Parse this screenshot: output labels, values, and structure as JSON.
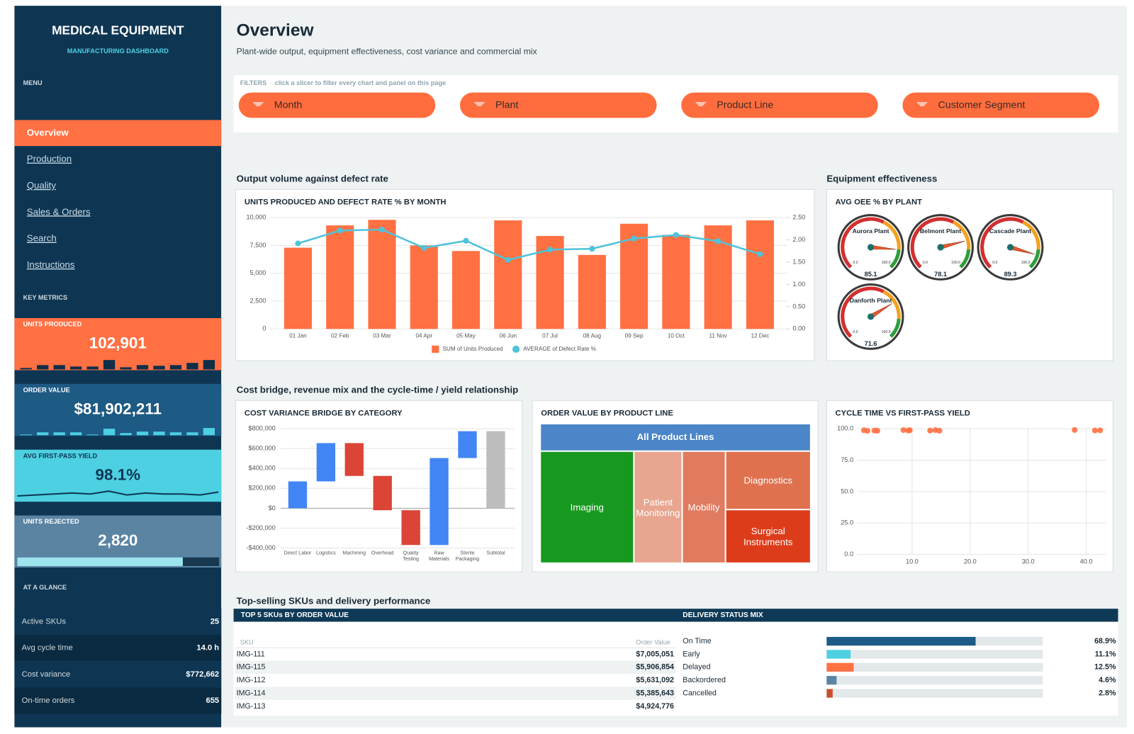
{
  "sidebar": {
    "title": "MEDICAL EQUIPMENT",
    "subtitle": "MANUFACTURING DASHBOARD",
    "menu_label": "MENU",
    "menu": [
      "Overview",
      "Production",
      "Quality",
      "Sales & Orders",
      "Search",
      "Instructions"
    ],
    "key_metrics_label": "KEY METRICS",
    "kpis": [
      {
        "label": "UNITS PRODUCED",
        "value": "102,901",
        "color": "#ff7043",
        "text_color": "#ffffff",
        "spark_type": "bar",
        "spark_color": "#0e2f47",
        "spark": [
          2,
          6,
          6,
          4,
          4,
          13,
          3,
          6,
          5,
          6,
          9,
          13
        ],
        "spark_lim": [
          0,
          14
        ]
      },
      {
        "label": "ORDER VALUE",
        "value": "$81,902,211",
        "color": "#1d5a84",
        "text_color": "#ffffff",
        "spark_type": "bar",
        "spark_color": "#4dd0e1",
        "spark": [
          1,
          4,
          4,
          4,
          1,
          9,
          3,
          5,
          5,
          4,
          4,
          10
        ],
        "spark_lim": [
          0,
          14
        ]
      },
      {
        "label": "AVG FIRST-PASS YIELD",
        "value": "98.1%",
        "color": "#4dd0e1",
        "text_color": "#0e3653",
        "spark_type": "line",
        "spark_color": "#0e3653",
        "spark": [
          97.9,
          98.0,
          98.1,
          98.2,
          98.1,
          98.4,
          98.0,
          98.2,
          98.1,
          98.1,
          98.0,
          98.3
        ],
        "spark_lim": [
          97.6,
          98.8
        ]
      },
      {
        "label": "UNITS REJECTED",
        "value": "2,820",
        "color": "#5b84a3",
        "text_color": "#ffffff",
        "spark_type": "progress",
        "spark_color": "#9de3ec",
        "spark": [
          82
        ],
        "spark_lim": [
          0,
          100
        ]
      }
    ],
    "glance_label": "AT A GLANCE",
    "glance": [
      [
        "Active SKUs",
        "25"
      ],
      [
        "Avg cycle time",
        "14.0 h"
      ],
      [
        "Cost variance",
        "$772,662"
      ],
      [
        "On-time orders",
        "655"
      ]
    ]
  },
  "header": {
    "title": "Overview",
    "subtitle": "Plant-wide output, equipment effectiveness, cost variance and commercial mix"
  },
  "filters": {
    "label": "FILTERS",
    "separator": "·",
    "hint": "click a slicer to filter every chart and panel on this page",
    "slicers": [
      "Month",
      "Plant",
      "Product Line",
      "Customer Segment"
    ]
  },
  "sections": [
    "Output volume against defect rate",
    "Equipment effectiveness",
    "Cost bridge, revenue mix and the cycle-time / yield relationship",
    "Top-selling SKUs and delivery performance"
  ],
  "chart_data": [
    {
      "type": "combo",
      "title": "UNITS PRODUCED AND DEFECT RATE % BY MONTH",
      "categories": [
        "01 Jan",
        "02 Feb",
        "03 Mar",
        "04 Apr",
        "05 May",
        "06 Jun",
        "07 Jul",
        "08 Aug",
        "09 Sep",
        "10 Oct",
        "11 Nov",
        "12 Dec"
      ],
      "series": [
        {
          "name": "SUM of Units Produced",
          "type": "bar",
          "color": "#ff7043",
          "values": [
            7300,
            9300,
            9800,
            7500,
            7000,
            9750,
            8350,
            6650,
            9450,
            8450,
            9300,
            9750
          ]
        },
        {
          "name": "AVERAGE of Defect Rate %",
          "type": "line",
          "axis": "y2",
          "color": "#4fc3d9",
          "values": [
            1.92,
            2.21,
            2.23,
            1.82,
            1.98,
            1.55,
            1.78,
            1.8,
            2.03,
            2.11,
            1.97,
            1.68
          ]
        }
      ],
      "ylim": [
        0,
        10000
      ],
      "yticks": [
        0,
        {
          "value": 2500,
          "label": "2,500"
        },
        {
          "value": 5000,
          "label": "5,000"
        },
        {
          "value": 7500,
          "label": "7,500"
        },
        {
          "value": 10000,
          "label": "10,000"
        }
      ],
      "y2lim": [
        0,
        2.5
      ],
      "y2ticks": [
        {
          "value": 0,
          "label": "0.00"
        },
        {
          "value": 0.5,
          "label": "0.50"
        },
        {
          "value": 1,
          "label": "1.00"
        },
        {
          "value": 1.5,
          "label": "1.50"
        },
        {
          "value": 2,
          "label": "2.00"
        },
        {
          "value": 2.5,
          "label": "2.50"
        }
      ],
      "grid": true
    },
    {
      "type": "gauge",
      "title": "AVG OEE % BY PLANT",
      "categories": [
        "Aurora Plant",
        "Belmont Plant",
        "Cascade Plant",
        "Danforth Plant"
      ],
      "values": [
        85.1,
        78.1,
        89.3,
        71.6
      ],
      "ylim": [
        0,
        100
      ],
      "yticks": [
        {
          "value": 0,
          "label": "0.0"
        },
        {
          "value": 100,
          "label": "100.0"
        }
      ],
      "bands": [
        {
          "from": 0,
          "to": 60,
          "color": "#d32f2f"
        },
        {
          "from": 60,
          "to": 85,
          "color": "#f4a11e"
        },
        {
          "from": 85,
          "to": 100,
          "color": "#2e9d3a"
        }
      ],
      "color": "#e65a2e"
    },
    {
      "type": "waterfall",
      "title": "COST VARIANCE BRIDGE BY CATEGORY",
      "categories": [
        "Direct Labor",
        "Logistics",
        "Machining",
        "Overhead",
        "Quality Testing",
        "Raw Materials",
        "Sterile Packaging",
        "Subtotal"
      ],
      "values": [
        270000,
        385000,
        -330000,
        -345000,
        -350000,
        875000,
        270000,
        775000
      ],
      "measure": [
        "relative",
        "relative",
        "relative",
        "relative",
        "relative",
        "relative",
        "relative",
        "total"
      ],
      "increase_color": "#4285f4",
      "decrease_color": "#db4437",
      "total_color": "#bdbdbd",
      "ylim": [
        -400000,
        800000
      ],
      "yticks": [
        {
          "value": -400000,
          "label": "-$400,000"
        },
        {
          "value": -200000,
          "label": "-$200,000"
        },
        {
          "value": 0,
          "label": "$0"
        },
        {
          "value": 200000,
          "label": "$200,000"
        },
        {
          "value": 400000,
          "label": "$400,000"
        },
        {
          "value": 600000,
          "label": "$600,000"
        },
        {
          "value": 800000,
          "label": "$800,000"
        }
      ],
      "grid": true
    },
    {
      "type": "treemap",
      "title": "ORDER VALUE BY PRODUCT LINE",
      "root": "All Product Lines",
      "root_color": "#4a86c8",
      "categories": [
        "Imaging",
        "Patient Monitoring",
        "Mobility",
        "Diagnostics",
        "Surgical Instruments"
      ],
      "values": [
        28500000,
        14700000,
        13200000,
        13300000,
        12200000
      ],
      "colors": [
        "#17991f",
        "#e8a58f",
        "#e07b5f",
        "#e0714f",
        "#dd3c1b"
      ]
    },
    {
      "type": "scatter",
      "title": "CYCLE TIME VS FIRST-PASS YIELD",
      "x": [
        1.7,
        2.3,
        3.5,
        4.0,
        8.5,
        9.3,
        9.6,
        13.1,
        14.0,
        14.7,
        38.0,
        41.5,
        42.4
      ],
      "values": [
        98.8,
        98.3,
        98.5,
        98.4,
        98.9,
        98.6,
        98.8,
        98.5,
        98.9,
        98.4,
        99.0,
        98.6,
        98.7
      ],
      "color": "#ff7043",
      "xlim": [
        0.5,
        43.5
      ],
      "xticks": [
        {
          "value": 10,
          "label": "10.0"
        },
        {
          "value": 20,
          "label": "20.0"
        },
        {
          "value": 30,
          "label": "30.0"
        },
        {
          "value": 40,
          "label": "40.0"
        }
      ],
      "ylim": [
        0,
        100
      ],
      "yticks": [
        {
          "value": 0,
          "label": "0.0"
        },
        {
          "value": 25,
          "label": "25.0"
        },
        {
          "value": 50,
          "label": "50.0"
        },
        {
          "value": 75,
          "label": "75.0"
        },
        {
          "value": 100,
          "label": "100.0"
        }
      ],
      "grid": true
    },
    {
      "type": "hbar",
      "title": "DELIVERY STATUS MIX",
      "categories": [
        "On Time",
        "Early",
        "Delayed",
        "Backordered",
        "Cancelled"
      ],
      "values": [
        68.9,
        11.1,
        12.5,
        4.6,
        2.8
      ],
      "value_labels": [
        "68.9%",
        "11.1%",
        "12.5%",
        "4.6%",
        "2.8%"
      ],
      "colors": [
        "#1d5c86",
        "#4dd0e1",
        "#ff7043",
        "#5b84a3",
        "#c8502f"
      ],
      "xlim": [
        0,
        100
      ]
    }
  ],
  "table": {
    "title": "TOP 5 SKUs BY ORDER VALUE",
    "columns": [
      "SKU",
      "Order Value"
    ],
    "rows": [
      [
        "IMG-111",
        "$7,005,051"
      ],
      [
        "IMG-115",
        "$5,906,854"
      ],
      [
        "IMG-112",
        "$5,631,092"
      ],
      [
        "IMG-114",
        "$5,385,643"
      ],
      [
        "IMG-113",
        "$4,924,776"
      ]
    ]
  }
}
